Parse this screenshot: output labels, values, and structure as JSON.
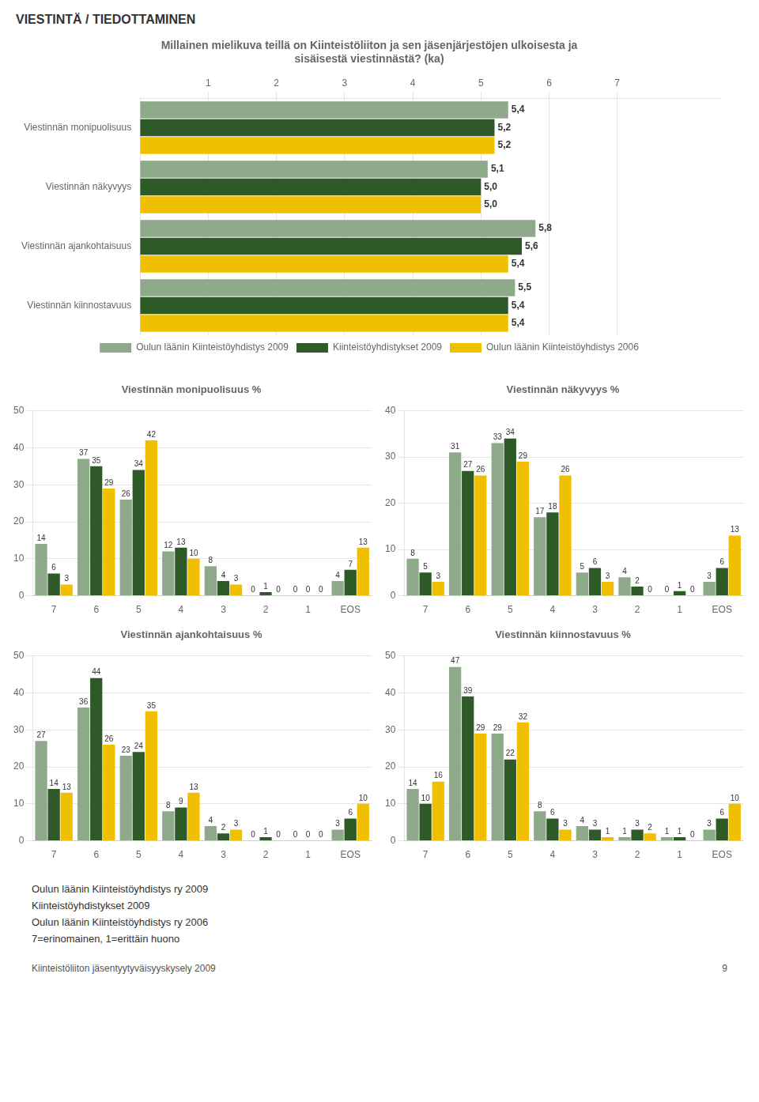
{
  "title": "VIESTINTÄ / TIEDOTTAMINEN",
  "chart_data": [
    {
      "type": "bar",
      "orientation": "horizontal",
      "title": "Millainen mielikuva teillä on Kiinteistöliiton ja sen jäsenjärjestöjen ulkoisesta ja\nsisäisestä viestinnästä? (ka)",
      "categories": [
        "Viestinnän monipuolisuus",
        "Viestinnän näkyvyys",
        "Viestinnän ajankohtaisuus",
        "Viestinnän kiinnostavuus"
      ],
      "series": [
        {
          "name": "Oulun läänin Kiinteistöyhdistys 2009",
          "color": "#8faa8b",
          "values": [
            5.4,
            5.1,
            5.8,
            5.5
          ],
          "value_labels": [
            "5,4",
            "5,1",
            "5,8",
            "5,5"
          ]
        },
        {
          "name": "Kiinteistöyhdistykset 2009",
          "color": "#2d5a27",
          "values": [
            5.2,
            5.0,
            5.6,
            5.4
          ],
          "value_labels": [
            "5,2",
            "5,0",
            "5,6",
            "5,4"
          ]
        },
        {
          "name": "Oulun läänin Kiinteistöyhdistys 2006",
          "color": "#f0c000",
          "values": [
            5.2,
            5.0,
            5.4,
            5.4
          ],
          "value_labels": [
            "5,2",
            "5,0",
            "5,4",
            "5,4"
          ]
        }
      ],
      "xlim": [
        0,
        8.5
      ],
      "xticks": [
        1,
        2,
        3,
        4,
        5,
        6,
        7
      ],
      "grid": true,
      "legend": "bottom",
      "data_labels": true
    },
    {
      "type": "bar",
      "title": "Viestinnän monipuolisuus %",
      "categories": [
        "7",
        "6",
        "5",
        "4",
        "3",
        "2",
        "1",
        "EOS"
      ],
      "series": [
        {
          "name": "Oulun läänin Kiinteistöyhdistys 2009",
          "color": "#8faa8b",
          "values": [
            14,
            37,
            26,
            12,
            8,
            0,
            0,
            4
          ]
        },
        {
          "name": "Kiinteistöyhdistykset 2009",
          "color": "#2d5a27",
          "values": [
            6,
            35,
            34,
            13,
            4,
            1,
            0,
            7
          ]
        },
        {
          "name": "Oulun läänin Kiinteistöyhdistys 2006",
          "color": "#f0c000",
          "values": [
            3,
            29,
            42,
            10,
            3,
            0,
            0,
            13
          ]
        }
      ],
      "ylim": [
        0,
        50
      ],
      "yticks": [
        0,
        10,
        20,
        30,
        40,
        50
      ],
      "grid": true,
      "data_labels": true
    },
    {
      "type": "bar",
      "title": "Viestinnän näkyvyys %",
      "categories": [
        "7",
        "6",
        "5",
        "4",
        "3",
        "2",
        "1",
        "EOS"
      ],
      "series": [
        {
          "name": "Oulun läänin Kiinteistöyhdistys 2009",
          "color": "#8faa8b",
          "values": [
            8,
            31,
            33,
            17,
            5,
            4,
            0,
            3
          ]
        },
        {
          "name": "Kiinteistöyhdistykset 2009",
          "color": "#2d5a27",
          "values": [
            5,
            27,
            34,
            18,
            6,
            2,
            1,
            6
          ]
        },
        {
          "name": "Oulun läänin Kiinteistöyhdistys 2006",
          "color": "#f0c000",
          "values": [
            3,
            26,
            29,
            26,
            3,
            0,
            0,
            13
          ]
        }
      ],
      "ylim": [
        0,
        40
      ],
      "yticks": [
        0,
        10,
        20,
        30,
        40
      ],
      "grid": true,
      "data_labels": true
    },
    {
      "type": "bar",
      "title": "Viestinnän ajankohtaisuus %",
      "categories": [
        "7",
        "6",
        "5",
        "4",
        "3",
        "2",
        "1",
        "EOS"
      ],
      "series": [
        {
          "name": "Oulun läänin Kiinteistöyhdistys 2009",
          "color": "#8faa8b",
          "values": [
            27,
            36,
            23,
            8,
            4,
            0,
            0,
            3
          ]
        },
        {
          "name": "Kiinteistöyhdistykset 2009",
          "color": "#2d5a27",
          "values": [
            14,
            44,
            24,
            9,
            2,
            1,
            0,
            6
          ]
        },
        {
          "name": "Oulun läänin Kiinteistöyhdistys 2006",
          "color": "#f0c000",
          "values": [
            13,
            26,
            35,
            13,
            3,
            0,
            0,
            10
          ]
        }
      ],
      "ylim": [
        0,
        50
      ],
      "yticks": [
        0,
        10,
        20,
        30,
        40,
        50
      ],
      "grid": true,
      "data_labels": true
    },
    {
      "type": "bar",
      "title": "Viestinnän kiinnostavuus %",
      "categories": [
        "7",
        "6",
        "5",
        "4",
        "3",
        "2",
        "1",
        "EOS"
      ],
      "series": [
        {
          "name": "Oulun läänin Kiinteistöyhdistys 2009",
          "color": "#8faa8b",
          "values": [
            14,
            47,
            29,
            8,
            4,
            1,
            1,
            3
          ]
        },
        {
          "name": "Kiinteistöyhdistykset 2009",
          "color": "#2d5a27",
          "values": [
            10,
            39,
            22,
            6,
            3,
            3,
            1,
            6
          ]
        },
        {
          "name": "Oulun läänin Kiinteistöyhdistys 2006",
          "color": "#f0c000",
          "values": [
            16,
            29,
            32,
            3,
            1,
            2,
            0,
            10
          ]
        }
      ],
      "ylim": [
        0,
        50
      ],
      "yticks": [
        0,
        10,
        20,
        30,
        40,
        50
      ],
      "grid": true,
      "data_labels": true
    }
  ],
  "annotations": [
    "Oulun läänin Kiinteistöyhdistys ry 2009",
    "Kiinteistöyhdistykset 2009",
    "Oulun läänin Kiinteistöyhdistys ry 2006",
    "7=erinomainen, 1=erittäin huono",
    "Kiinteistöliiton jäsentyytyväisyyskysely 2009",
    "9"
  ]
}
